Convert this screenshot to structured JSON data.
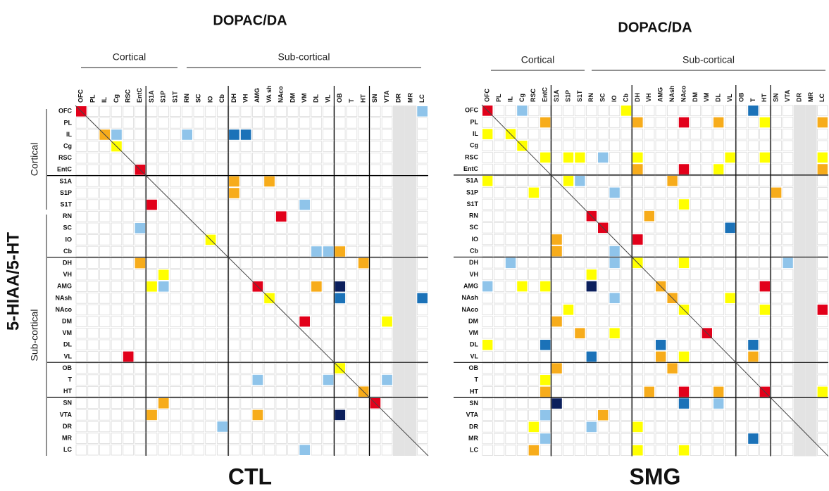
{
  "y_axis_title": "5-HIAA/5-HT",
  "palette": {
    "r": "#e2001a",
    "o": "#f7ac1b",
    "y": "#ffff00",
    "l": "#8fc4ea",
    "b": "#1b72b8",
    "n": "#0b1f5c"
  },
  "panels": [
    {
      "title": "DOPAC/DA",
      "label": "CTL",
      "column_groups": [
        "Cortical",
        "Sub-cortical"
      ],
      "row_groups": [
        "Cortical",
        "Sub-cortical"
      ],
      "columns": [
        "OFC",
        "PL",
        "IL",
        "Cg",
        "RSC",
        "EntC",
        "S1A",
        "S1P",
        "S1T",
        "RN",
        "SC",
        "IO",
        "Cb",
        "DH",
        "VH",
        "AMG",
        "VA sh",
        "NAco",
        "DM",
        "VM",
        "DL",
        "VL",
        "OB",
        "T",
        "HT",
        "SN",
        "VTA",
        "DR",
        "MR",
        "LC"
      ],
      "rows": [
        "OFC",
        "PL",
        "IL",
        "Cg",
        "RSC",
        "EntC",
        "S1A",
        "S1P",
        "S1T",
        "RN",
        "SC",
        "IO",
        "Cb",
        "DH",
        "VH",
        "AMG",
        "NAsh",
        "NAco",
        "DM",
        "VM",
        "DL",
        "VL",
        "OB",
        "T",
        "HT",
        "SN",
        "VTA",
        "DR",
        "MR",
        "LC"
      ],
      "cells": [
        "r............................l",
        "..............................",
        "..ol.....l...bb...............",
        "...y..........................",
        "..............................",
        ".....r........................",
        ".............o..o.............",
        ".............o................",
        "......r............l..........",
        ".................r............",
        ".....l........................",
        "...........y..................",
        "....................llo.......",
        ".....o..................o.....",
        ".......y......................",
        "......yl.......r....o.n.......",
        "................y.....b......b",
        "..............................",
        "...................r......y...",
        "..............................",
        "..............................",
        "....r.........................",
        "......................y.......",
        "...............l.....l....l...",
        "........................o.....",
        ".......o.................r....",
        "......o........o......n.......",
        "............l.................",
        "..............................",
        "...................l.........."
      ]
    },
    {
      "title": "DOPAC/DA",
      "label": "SMG",
      "column_groups": [
        "Cortical",
        "Sub-cortical"
      ],
      "columns": [
        "OFC",
        "PL",
        "IL",
        "Cg",
        "RSC",
        "EntC",
        "S1A",
        "S1P",
        "S1T",
        "RN",
        "SC",
        "IO",
        "Cb",
        "DH",
        "VH",
        "AMG",
        "NAsh",
        "NAco",
        "DM",
        "VM",
        "DL",
        "VL",
        "OB",
        "T",
        "HT",
        "SN",
        "VTA",
        "DR",
        "MR",
        "LC"
      ],
      "rows": [
        "OFC",
        "PL",
        "IL",
        "Cg",
        "RSC",
        "EntC",
        "S1A",
        "S1P",
        "S1T",
        "RN",
        "SC",
        "IO",
        "Cb",
        "DH",
        "VH",
        "AMG",
        "NAsh",
        "NAco",
        "DM",
        "VM",
        "DL",
        "VL",
        "OB",
        "T",
        "HT",
        "SN",
        "VTA",
        "DR",
        "MR",
        "LC"
      ],
      "cells": [
        "r..l........y..........b......",
        ".....o.......o...r..o...y....o",
        "y.y...........................",
        "...y..........................",
        ".....y.yy.l..y.......y..y....y",
        ".............o...r..y........o",
        "y......yl.......o.............",
        "....y......l.............o....",
        ".................y............",
        ".........r....o...............",
        "..........r..........b........",
        "......o......r................",
        "......o....l..................",
        "..l........l.y...y........l...",
        ".........y....................",
        "l..y.y...n.....o........r.....",
        "...........l....o....y........",
        ".......y.........y......y....r",
        "......o.......................",
        "........o..y.......r..........",
        "y....b.........b.......b......",
        ".........b.....o.y.....o......",
        "......o.........o.............",
        ".....y........................",
        ".....o........o..r..o...r....y",
        "......n..........b..l.........",
        ".....l....o...................",
        "....y....l...y................",
        ".....l.................b......",
        "....o........y...y............"
      ]
    }
  ]
}
